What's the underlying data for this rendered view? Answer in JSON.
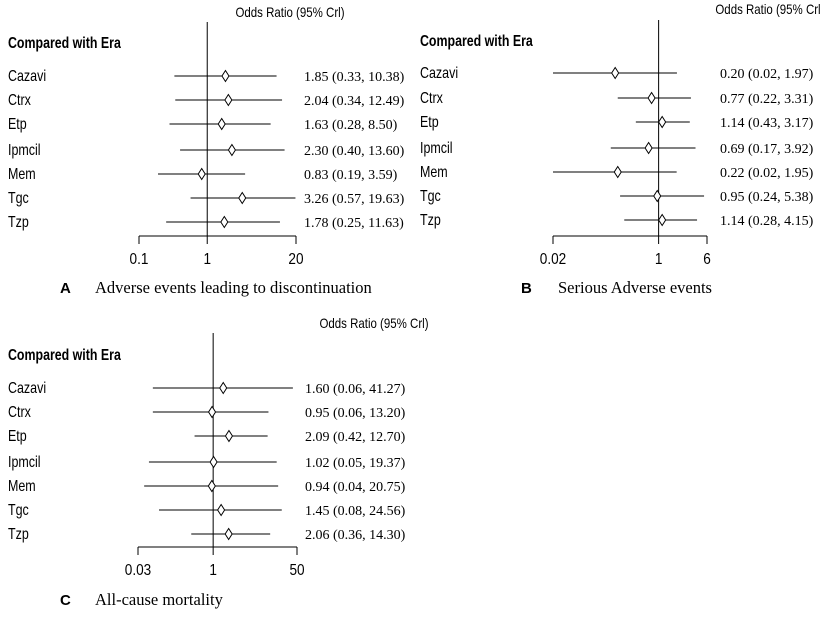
{
  "chart_data": [
    {
      "type": "forest",
      "panel_letter": "A",
      "caption": "Adverse events leading to discontinuation",
      "header": "Odds Ratio (95% Crl)",
      "comparator_label": "Compared with Era",
      "scale": "log",
      "ticks": [
        "0.1",
        "1",
        "20"
      ],
      "tick_values": [
        0.1,
        1,
        20
      ],
      "reference_line": 1,
      "rows": [
        {
          "label": "Cazavi",
          "or": 1.85,
          "lo": 0.33,
          "hi": 10.38,
          "text": "1.85 (0.33, 10.38)"
        },
        {
          "label": "Ctrx",
          "or": 2.04,
          "lo": 0.34,
          "hi": 12.49,
          "text": "2.04 (0.34, 12.49)"
        },
        {
          "label": "Etp",
          "or": 1.63,
          "lo": 0.28,
          "hi": 8.5,
          "text": "1.63 (0.28, 8.50)"
        },
        {
          "label": "Ipmcil",
          "or": 2.3,
          "lo": 0.4,
          "hi": 13.6,
          "text": "2.30 (0.40, 13.60)"
        },
        {
          "label": "Mem",
          "or": 0.83,
          "lo": 0.19,
          "hi": 3.59,
          "text": "0.83 (0.19, 3.59)"
        },
        {
          "label": "Tgc",
          "or": 3.26,
          "lo": 0.57,
          "hi": 19.63,
          "text": "3.26 (0.57, 19.63)"
        },
        {
          "label": "Tzp",
          "or": 1.78,
          "lo": 0.25,
          "hi": 11.63,
          "text": "1.78 (0.25, 11.63)"
        }
      ]
    },
    {
      "type": "forest",
      "panel_letter": "B",
      "caption": "Serious Adverse events",
      "header": "Odds Ratio (95% Crl",
      "comparator_label": "Compared with Era",
      "scale": "log",
      "ticks": [
        "0.02",
        "1",
        "6"
      ],
      "tick_values": [
        0.02,
        1,
        6
      ],
      "reference_line": 1,
      "rows": [
        {
          "label": "Cazavi",
          "or": 0.2,
          "lo": 0.02,
          "hi": 1.97,
          "text": "0.20 (0.02, 1.97)"
        },
        {
          "label": "Ctrx",
          "or": 0.77,
          "lo": 0.22,
          "hi": 3.31,
          "text": "0.77 (0.22, 3.31)"
        },
        {
          "label": "Etp",
          "or": 1.14,
          "lo": 0.43,
          "hi": 3.17,
          "text": "1.14 (0.43, 3.17)"
        },
        {
          "label": "Ipmcil",
          "or": 0.69,
          "lo": 0.17,
          "hi": 3.92,
          "text": "0.69 (0.17, 3.92)"
        },
        {
          "label": "Mem",
          "or": 0.22,
          "lo": 0.02,
          "hi": 1.95,
          "text": "0.22 (0.02, 1.95)"
        },
        {
          "label": "Tgc",
          "or": 0.95,
          "lo": 0.24,
          "hi": 5.38,
          "text": "0.95 (0.24, 5.38)"
        },
        {
          "label": "Tzp",
          "or": 1.14,
          "lo": 0.28,
          "hi": 4.15,
          "text": "1.14 (0.28, 4.15)"
        }
      ]
    },
    {
      "type": "forest",
      "panel_letter": "C",
      "caption": "All-cause mortality",
      "header": "Odds Ratio (95% Crl)",
      "comparator_label": "Compared with Era",
      "scale": "log",
      "ticks": [
        "0.03",
        "1",
        "50"
      ],
      "tick_values": [
        0.03,
        1,
        50
      ],
      "reference_line": 1,
      "rows": [
        {
          "label": "Cazavi",
          "or": 1.6,
          "lo": 0.06,
          "hi": 41.27,
          "text": "1.60 (0.06, 41.27)"
        },
        {
          "label": "Ctrx",
          "or": 0.95,
          "lo": 0.06,
          "hi": 13.2,
          "text": "0.95 (0.06, 13.20)"
        },
        {
          "label": "Etp",
          "or": 2.09,
          "lo": 0.42,
          "hi": 12.7,
          "text": "2.09 (0.42, 12.70)"
        },
        {
          "label": "Ipmcil",
          "or": 1.02,
          "lo": 0.05,
          "hi": 19.37,
          "text": "1.02 (0.05, 19.37)"
        },
        {
          "label": "Mem",
          "or": 0.94,
          "lo": 0.04,
          "hi": 20.75,
          "text": "0.94 (0.04, 20.75)"
        },
        {
          "label": "Tgc",
          "or": 1.45,
          "lo": 0.08,
          "hi": 24.56,
          "text": "1.45 (0.08, 24.56)"
        },
        {
          "label": "Tzp",
          "or": 2.06,
          "lo": 0.36,
          "hi": 14.3,
          "text": "2.06 (0.36, 14.30)"
        }
      ]
    }
  ]
}
